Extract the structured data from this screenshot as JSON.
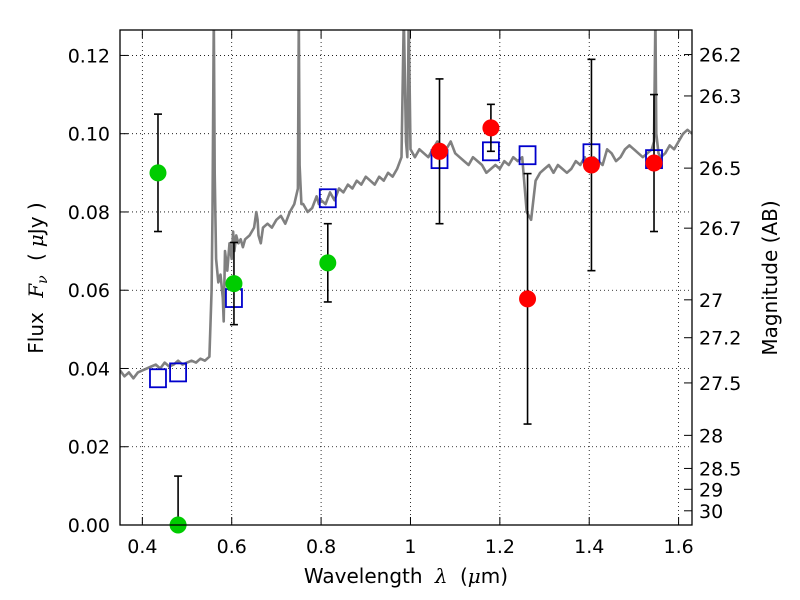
{
  "chart_data": {
    "type": "scatter",
    "title": "",
    "xlabel_main": "Wavelength",
    "xlabel_symbol": "λ",
    "xlabel_unit_open": "(",
    "xlabel_unit_mu": "μ",
    "xlabel_unit_rest": "m)",
    "ylabel_main": "Flux",
    "ylabel_symbol": "F",
    "ylabel_subscript": "ν",
    "ylabel_unit_open": "(",
    "ylabel_unit_mu": "μ",
    "ylabel_unit_rest": "Jy )",
    "y2label": "Magnitude (AB)",
    "xlim": [
      0.35,
      1.63
    ],
    "ylim": [
      0.0,
      0.1265
    ],
    "grid": true,
    "xticks": [
      0.4,
      0.6,
      0.8,
      1.0,
      1.2,
      1.4,
      1.6
    ],
    "xtick_labels": [
      "0.4",
      "0.6",
      "0.8",
      "1",
      "1.2",
      "1.4",
      "1.6"
    ],
    "yticks": [
      0.0,
      0.02,
      0.04,
      0.06,
      0.08,
      0.1,
      0.12
    ],
    "ytick_labels": [
      "0.00",
      "0.02",
      "0.04",
      "0.06",
      "0.08",
      "0.10",
      "0.12"
    ],
    "mag_ticks": [
      26.2,
      26.3,
      26.5,
      26.7,
      27,
      27.2,
      27.5,
      28,
      28.5,
      29,
      30
    ],
    "mag_tick_labels": [
      "26.2",
      "26.3",
      "26.5",
      "26.7",
      "27",
      "27.2",
      "27.5",
      "28",
      "28.5",
      "29",
      "30"
    ],
    "series": [
      {
        "name": "model-spectrum",
        "kind": "line",
        "color": "#808080",
        "x": [
          0.35,
          0.36,
          0.37,
          0.38,
          0.39,
          0.4,
          0.41,
          0.42,
          0.43,
          0.44,
          0.45,
          0.46,
          0.47,
          0.48,
          0.49,
          0.5,
          0.51,
          0.52,
          0.53,
          0.54,
          0.55,
          0.555,
          0.557,
          0.56,
          0.562,
          0.565,
          0.57,
          0.575,
          0.58,
          0.582,
          0.585,
          0.59,
          0.595,
          0.6,
          0.603,
          0.606,
          0.61,
          0.615,
          0.62,
          0.625,
          0.63,
          0.64,
          0.65,
          0.655,
          0.658,
          0.66,
          0.665,
          0.67,
          0.68,
          0.69,
          0.7,
          0.71,
          0.72,
          0.73,
          0.74,
          0.748,
          0.75,
          0.752,
          0.756,
          0.76,
          0.77,
          0.78,
          0.79,
          0.795,
          0.8,
          0.81,
          0.82,
          0.83,
          0.84,
          0.85,
          0.86,
          0.87,
          0.88,
          0.89,
          0.9,
          0.91,
          0.92,
          0.93,
          0.94,
          0.95,
          0.96,
          0.97,
          0.98,
          0.985,
          0.99,
          0.993,
          0.996,
          1.0,
          1.005,
          1.01,
          1.02,
          1.03,
          1.04,
          1.05,
          1.06,
          1.07,
          1.08,
          1.09,
          1.1,
          1.11,
          1.12,
          1.13,
          1.14,
          1.15,
          1.16,
          1.17,
          1.18,
          1.19,
          1.2,
          1.21,
          1.22,
          1.23,
          1.24,
          1.25,
          1.26,
          1.27,
          1.28,
          1.29,
          1.3,
          1.31,
          1.32,
          1.33,
          1.34,
          1.35,
          1.36,
          1.37,
          1.38,
          1.39,
          1.4,
          1.41,
          1.42,
          1.43,
          1.44,
          1.45,
          1.46,
          1.47,
          1.48,
          1.49,
          1.5,
          1.51,
          1.52,
          1.53,
          1.54,
          1.545,
          1.548,
          1.55,
          1.555,
          1.56,
          1.57,
          1.58,
          1.59,
          1.6,
          1.61,
          1.62,
          1.63
        ],
        "y": [
          0.0395,
          0.038,
          0.039,
          0.0375,
          0.039,
          0.0395,
          0.04,
          0.0405,
          0.041,
          0.04,
          0.0415,
          0.0405,
          0.041,
          0.042,
          0.041,
          0.0415,
          0.042,
          0.0415,
          0.0425,
          0.042,
          0.043,
          0.06,
          0.08,
          0.13,
          0.09,
          0.068,
          0.062,
          0.064,
          0.058,
          0.052,
          0.07,
          0.065,
          0.072,
          0.068,
          0.075,
          0.07,
          0.074,
          0.072,
          0.073,
          0.071,
          0.073,
          0.074,
          0.076,
          0.08,
          0.078,
          0.074,
          0.072,
          0.076,
          0.077,
          0.076,
          0.078,
          0.079,
          0.077,
          0.08,
          0.082,
          0.086,
          0.13,
          0.092,
          0.082,
          0.082,
          0.08,
          0.081,
          0.084,
          0.082,
          0.083,
          0.082,
          0.085,
          0.083,
          0.086,
          0.085,
          0.087,
          0.086,
          0.088,
          0.087,
          0.089,
          0.088,
          0.087,
          0.089,
          0.088,
          0.09,
          0.089,
          0.091,
          0.094,
          0.13,
          0.098,
          0.094,
          0.13,
          0.096,
          0.095,
          0.094,
          0.096,
          0.095,
          0.094,
          0.096,
          0.098,
          0.097,
          0.096,
          0.098,
          0.095,
          0.094,
          0.093,
          0.092,
          0.094,
          0.093,
          0.092,
          0.09,
          0.091,
          0.092,
          0.091,
          0.093,
          0.092,
          0.094,
          0.093,
          0.094,
          0.08,
          0.078,
          0.088,
          0.09,
          0.091,
          0.092,
          0.09,
          0.092,
          0.091,
          0.09,
          0.091,
          0.093,
          0.092,
          0.094,
          0.091,
          0.094,
          0.093,
          0.092,
          0.096,
          0.095,
          0.093,
          0.094,
          0.096,
          0.097,
          0.096,
          0.095,
          0.094,
          0.095,
          0.096,
          0.098,
          0.13,
          0.1,
          0.095,
          0.094,
          0.095,
          0.097,
          0.096,
          0.098,
          0.1,
          0.101,
          0.1
        ]
      },
      {
        "name": "model-photometry",
        "kind": "open-square",
        "color": "#0000cc",
        "x": [
          0.435,
          0.48,
          0.605,
          0.815,
          1.065,
          1.18,
          1.262,
          1.405,
          1.545
        ],
        "y": [
          0.0375,
          0.039,
          0.058,
          0.0835,
          0.0935,
          0.0955,
          0.0945,
          0.095,
          0.0935
        ]
      },
      {
        "name": "optical-detections",
        "kind": "filled-circle",
        "color": "#00cc00",
        "x": [
          0.435,
          0.48,
          0.605,
          0.815
        ],
        "y": [
          0.09,
          0.0,
          0.0617,
          0.067
        ],
        "err": [
          0.015,
          0.0125,
          0.0105,
          0.01
        ]
      },
      {
        "name": "nir-detections",
        "kind": "filled-circle",
        "color": "#ff0000",
        "x": [
          1.065,
          1.18,
          1.262,
          1.405,
          1.545
        ],
        "y": [
          0.0955,
          0.1015,
          0.0578,
          0.092,
          0.0925
        ],
        "err": [
          0.0185,
          0.006,
          0.032,
          0.027,
          0.0175
        ]
      }
    ]
  }
}
